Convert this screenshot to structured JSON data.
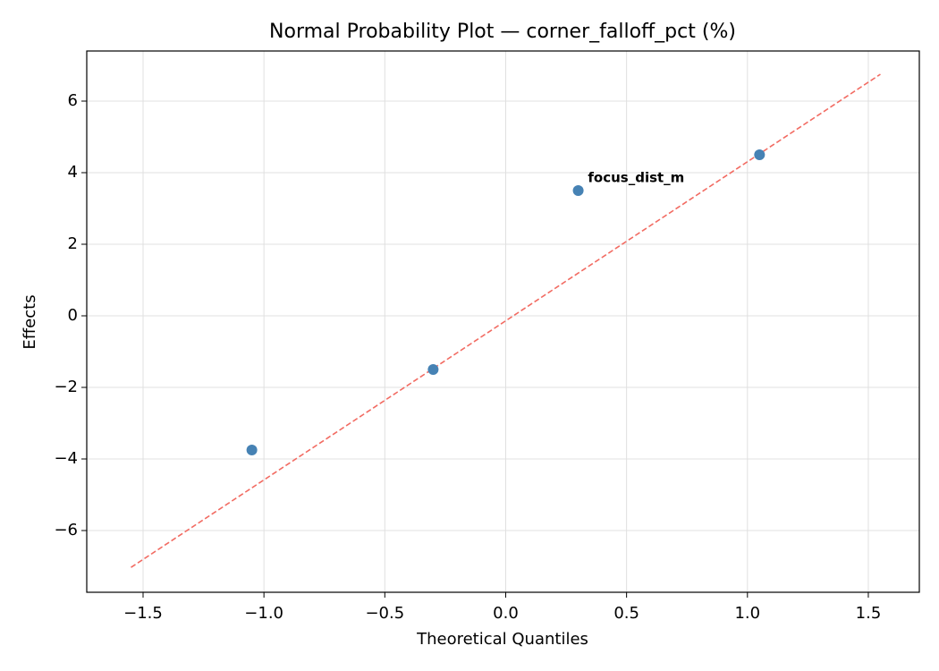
{
  "chart_data": {
    "type": "scatter",
    "title": "Normal Probability Plot — corner_falloff_pct (%)",
    "x_label": "Theoretical Quantiles",
    "y_label": "Effects",
    "x": [
      -1.05,
      -0.3,
      0.3,
      1.05
    ],
    "values": [
      -3.75,
      -1.5,
      3.5,
      4.5
    ],
    "color": "#4682b4",
    "reference_line": {
      "x": [
        -1.55,
        1.55
      ],
      "y": [
        -7.03,
        6.75
      ],
      "color": "#f26b62"
    },
    "annotations": [
      {
        "text": "focus_dist_m",
        "x": 0.34,
        "y": 3.85,
        "color": "#ff0000"
      }
    ],
    "xlim": [
      -1.733,
      1.711
    ],
    "ylim": [
      -7.725,
      7.4
    ],
    "xticks": [
      {
        "value": -1.5,
        "label": "−1.5"
      },
      {
        "value": -1.0,
        "label": "−1.0"
      },
      {
        "value": -0.5,
        "label": "−0.5"
      },
      {
        "value": 0,
        "label": "0.0"
      },
      0.5,
      {
        "value": 1.0,
        "label": "1.0"
      },
      1.5
    ],
    "yticks": [
      {
        "value": -6,
        "label": "−6"
      },
      {
        "value": -4,
        "label": "−4"
      },
      {
        "value": -2,
        "label": "−2"
      },
      0,
      2,
      4,
      6
    ],
    "grid": true
  }
}
